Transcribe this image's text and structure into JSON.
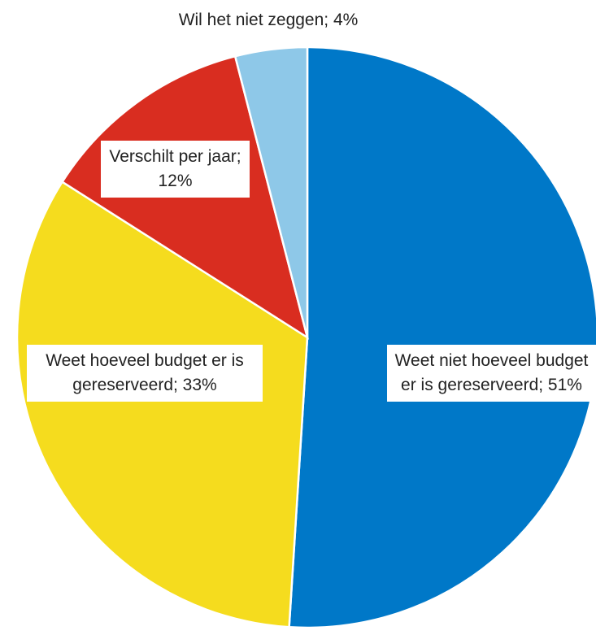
{
  "chart_data": {
    "type": "pie",
    "values": [
      51,
      33,
      12,
      4
    ],
    "value_labels": [
      "Weet niet hoeveel budget er is gereserveerd; 51%",
      "Weet hoeveel budget er is gereserveerd; 33%",
      "Verschilt per jaar; 12%",
      "Wil het niet zeggen; 4%"
    ],
    "colors": [
      "#0078c8",
      "#f5dc1e",
      "#d92d20",
      "#8ec8e8"
    ]
  }
}
